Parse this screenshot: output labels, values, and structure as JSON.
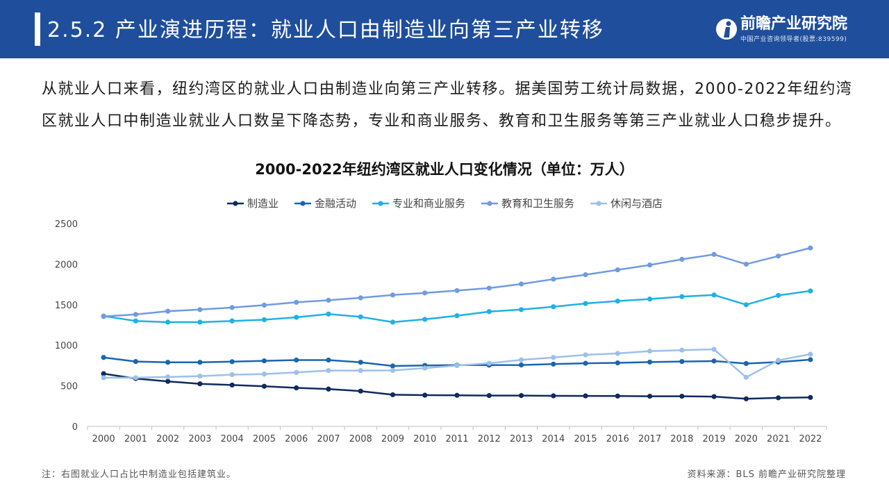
{
  "header": {
    "title": "2.5.2 产业演进历程：就业人口由制造业向第三产业转移",
    "brand_name": "前瞻产业研究院",
    "brand_sub": "中国产业咨询领导者(股票:839599)"
  },
  "intro_text": "从就业人口来看，纽约湾区的就业人口由制造业向第三产业转移。据美国劳工统计局数据，2000-2022年纽约湾区就业人口中制造业就业人口数呈下降态势，专业和商业服务、教育和卫生服务等第三产业就业人口稳步提升。",
  "footnote": "注：右图就业人口占比中制造业包括建筑业。",
  "source": "资料来源：BLS 前瞻产业研究院整理",
  "colors": {
    "header_bg": "#1f4e9c"
  },
  "chart_data": {
    "type": "line",
    "title": "2000-2022年纽约湾区就业人口变化情况（单位：万人）",
    "xlabel": "",
    "ylabel": "",
    "ylim": [
      0,
      2500
    ],
    "yticks": [
      0,
      500,
      1000,
      1500,
      2000,
      2500
    ],
    "grid": false,
    "legend_position": "top",
    "x": [
      "2000",
      "2001",
      "2002",
      "2003",
      "2004",
      "2005",
      "2006",
      "2007",
      "2008",
      "2009",
      "2010",
      "2011",
      "2012",
      "2013",
      "2014",
      "2015",
      "2016",
      "2017",
      "2018",
      "2019",
      "2020",
      "2021",
      "2022"
    ],
    "series": [
      {
        "name": "制造业",
        "color": "#0f2a5c",
        "values": [
          650,
          590,
          555,
          525,
          510,
          495,
          475,
          460,
          435,
          390,
          385,
          383,
          380,
          380,
          377,
          376,
          374,
          372,
          372,
          367,
          340,
          352,
          357
        ]
      },
      {
        "name": "金融活动",
        "color": "#1b64b0",
        "values": [
          850,
          800,
          790,
          790,
          798,
          808,
          818,
          818,
          790,
          745,
          752,
          755,
          755,
          757,
          768,
          778,
          783,
          793,
          800,
          806,
          775,
          793,
          823
        ]
      },
      {
        "name": "专业和商业服务",
        "color": "#1fb0e6",
        "values": [
          1360,
          1300,
          1285,
          1285,
          1300,
          1315,
          1345,
          1385,
          1350,
          1285,
          1320,
          1365,
          1415,
          1440,
          1475,
          1515,
          1545,
          1570,
          1600,
          1620,
          1500,
          1615,
          1670
        ]
      },
      {
        "name": "教育和卫生服务",
        "color": "#6f9be0",
        "values": [
          1355,
          1380,
          1420,
          1440,
          1465,
          1495,
          1530,
          1555,
          1585,
          1620,
          1645,
          1675,
          1705,
          1755,
          1815,
          1870,
          1930,
          1990,
          2060,
          2120,
          2000,
          2100,
          2200
        ]
      },
      {
        "name": "休闲与酒店",
        "color": "#9cc0ea",
        "values": [
          600,
          600,
          610,
          620,
          638,
          645,
          665,
          688,
          688,
          690,
          718,
          750,
          778,
          820,
          850,
          882,
          900,
          928,
          940,
          950,
          605,
          815,
          890
        ]
      }
    ]
  }
}
